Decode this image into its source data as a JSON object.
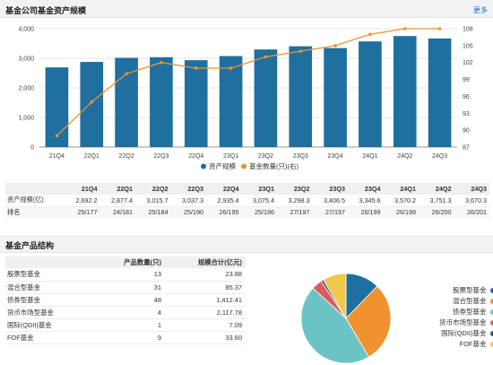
{
  "header1": {
    "title": "基金公司基金资产规模",
    "more": "更多"
  },
  "header2": {
    "title": "基金产品结构"
  },
  "colors": {
    "bar": "#1f6f9f",
    "line": "#f0922e"
  },
  "chart_data": {
    "type": "bar",
    "categories": [
      "21Q4",
      "22Q1",
      "22Q2",
      "22Q3",
      "22Q4",
      "23Q1",
      "23Q2",
      "23Q3",
      "23Q4",
      "24Q1",
      "24Q2",
      "24Q3"
    ],
    "series": [
      {
        "name": "资产规模",
        "type": "bar",
        "axis": "left",
        "values": [
          2692.2,
          2877.4,
          3015.7,
          3037.3,
          2935.4,
          3075.4,
          3298.3,
          3406.5,
          3345.6,
          3570.2,
          3751.3,
          3670.3
        ]
      },
      {
        "name": "基金数量(只)(右)",
        "type": "line",
        "axis": "right",
        "values": [
          89,
          95,
          100,
          102,
          101,
          101,
          103,
          104,
          105,
          107,
          108,
          108
        ]
      }
    ],
    "ylim_left": [
      0,
      4000
    ],
    "yticks_left": [
      "0",
      "1,000",
      "2,000",
      "3,000",
      "4,000"
    ],
    "ylim_right": [
      87,
      108
    ],
    "yticks_right": [
      "87",
      "90",
      "93",
      "96",
      "99",
      "102",
      "105",
      "108"
    ],
    "legend": "bottom",
    "grid": true
  },
  "summary": {
    "headers": [
      "21Q4",
      "22Q1",
      "22Q2",
      "22Q3",
      "22Q4",
      "23Q1",
      "23Q2",
      "23Q3",
      "23Q4",
      "24Q1",
      "24Q2",
      "24Q3"
    ],
    "row1_label": "资产规模(亿)",
    "row1": [
      "2,692.2",
      "2,877.4",
      "3,015.7",
      "3,037.3",
      "2,935.4",
      "3,075.4",
      "3,298.3",
      "3,406.5",
      "3,345.6",
      "3,570.2",
      "3,751.3",
      "3,670.3"
    ],
    "row2_label": "排名",
    "row2": [
      "25/177",
      "24/181",
      "25/184",
      "25/190",
      "26/195",
      "25/196",
      "27/197",
      "27/197",
      "26/199",
      "26/199",
      "26/200",
      "26/201"
    ]
  },
  "structure": {
    "col_count": "产品数量(只)",
    "col_total": "规模合计(亿元)",
    "rows": [
      {
        "name": "股票型基金",
        "count": "13",
        "total": "23.88"
      },
      {
        "name": "混合型基金",
        "count": "31",
        "total": "85.37"
      },
      {
        "name": "债券型基金",
        "count": "48",
        "total": "1,412.41"
      },
      {
        "name": "货币市场型基金",
        "count": "4",
        "total": "2,117.78"
      },
      {
        "name": "国际(QDII)基金",
        "count": "1",
        "total": "7.09"
      },
      {
        "name": "FOF基金",
        "count": "9",
        "total": "33.60"
      }
    ]
  },
  "pie": {
    "slices": [
      {
        "name": "股票型基金",
        "value": 13,
        "color": "#1f6f9f"
      },
      {
        "name": "混合型基金",
        "value": 31,
        "color": "#f0922e"
      },
      {
        "name": "债券型基金",
        "value": 48,
        "color": "#6cc3c6"
      },
      {
        "name": "货币市场型基金",
        "value": 4,
        "color": "#e05a5a"
      },
      {
        "name": "国际(QDII)基金",
        "value": 1,
        "color": "#3a4f8a"
      },
      {
        "name": "FOF基金",
        "value": 9,
        "color": "#f2c84b"
      }
    ]
  }
}
